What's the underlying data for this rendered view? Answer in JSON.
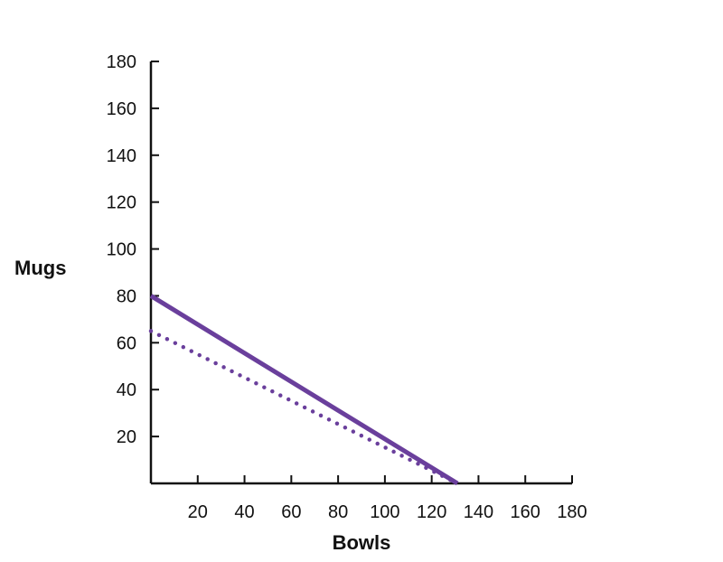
{
  "chart_data": {
    "type": "line",
    "xlabel": "Bowls",
    "ylabel": "Mugs",
    "xlim": [
      0,
      180
    ],
    "ylim": [
      0,
      180
    ],
    "x_ticks": [
      20,
      40,
      60,
      80,
      100,
      120,
      140,
      160,
      180
    ],
    "y_ticks": [
      20,
      40,
      60,
      80,
      100,
      120,
      140,
      160,
      180
    ],
    "grid": false,
    "legend": "none",
    "series": [
      {
        "style": "solid",
        "color": "#6a3f9c",
        "points": [
          [
            0,
            80
          ],
          [
            131,
            0
          ]
        ]
      },
      {
        "style": "dotted",
        "color": "#6a3f9c",
        "points": [
          [
            0,
            65
          ],
          [
            131,
            0
          ]
        ]
      }
    ]
  }
}
